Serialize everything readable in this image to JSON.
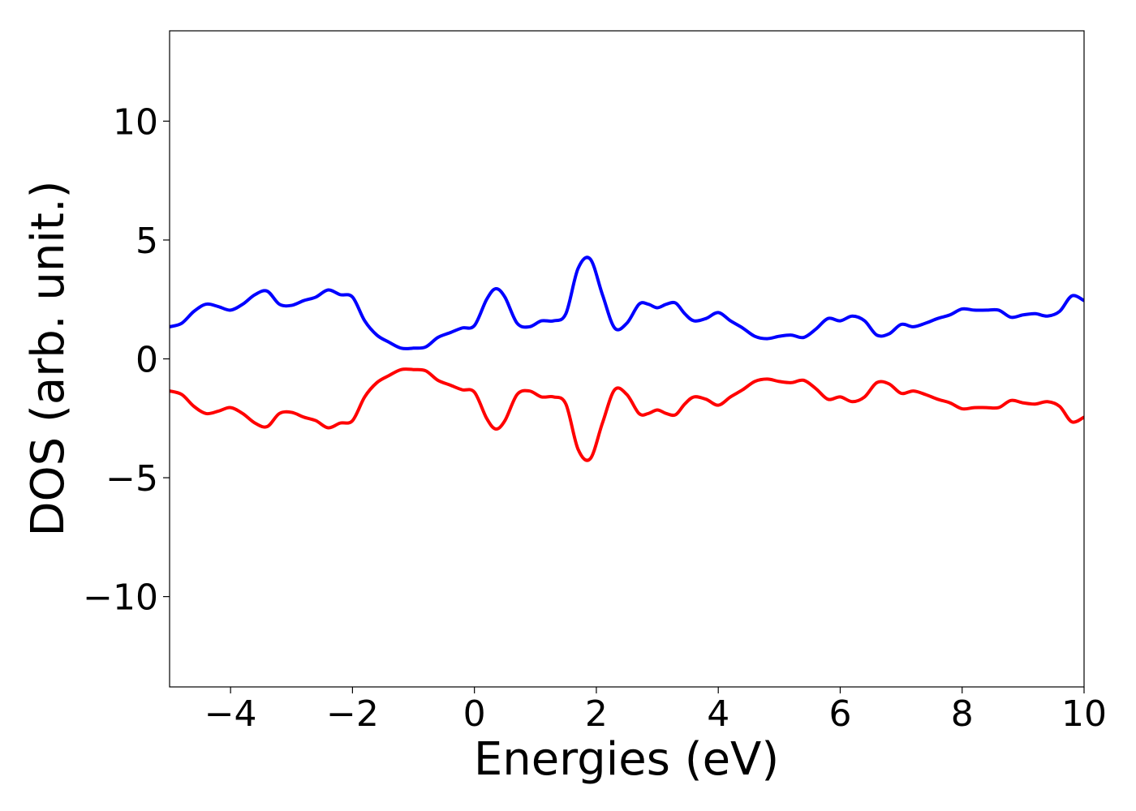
{
  "chart_data": {
    "type": "line",
    "title": "",
    "xlabel": "Energies (eV)",
    "ylabel": "DOS (arb. unit.)",
    "xlim": [
      -5,
      10
    ],
    "ylim": [
      -13.8,
      13.8
    ],
    "grid": false,
    "legend": "none",
    "x_ticks": [
      -4,
      -2,
      0,
      2,
      4,
      6,
      8,
      10
    ],
    "x_tick_labels": [
      "−4",
      "−2",
      "0",
      "2",
      "4",
      "6",
      "8",
      "10"
    ],
    "y_ticks": [
      -10,
      -5,
      0,
      5,
      10
    ],
    "y_tick_labels": [
      "−10",
      "−5",
      "0",
      "5",
      "10"
    ],
    "series": [
      {
        "color": "#0000ff",
        "x": [
          -5.0,
          -4.8,
          -4.6,
          -4.4,
          -4.2,
          -4.0,
          -3.8,
          -3.6,
          -3.4,
          -3.2,
          -3.0,
          -2.8,
          -2.6,
          -2.4,
          -2.2,
          -2.0,
          -1.8,
          -1.6,
          -1.4,
          -1.2,
          -1.0,
          -0.8,
          -0.6,
          -0.4,
          -0.2,
          0.0,
          0.2,
          0.35,
          0.5,
          0.7,
          0.9,
          1.1,
          1.3,
          1.5,
          1.7,
          1.9,
          2.1,
          2.3,
          2.5,
          2.7,
          2.85,
          3.0,
          3.15,
          3.3,
          3.45,
          3.6,
          3.8,
          4.0,
          4.2,
          4.4,
          4.6,
          4.8,
          5.0,
          5.2,
          5.4,
          5.6,
          5.8,
          6.0,
          6.2,
          6.4,
          6.6,
          6.8,
          7.0,
          7.2,
          7.4,
          7.6,
          7.8,
          8.0,
          8.2,
          8.4,
          8.6,
          8.8,
          9.0,
          9.2,
          9.4,
          9.6,
          9.8,
          10.0
        ],
        "values": [
          1.35,
          1.5,
          2.0,
          2.3,
          2.2,
          2.05,
          2.3,
          2.7,
          2.85,
          2.3,
          2.25,
          2.45,
          2.6,
          2.9,
          2.7,
          2.6,
          1.6,
          1.0,
          0.7,
          0.45,
          0.45,
          0.5,
          0.9,
          1.1,
          1.3,
          1.4,
          2.5,
          2.95,
          2.6,
          1.5,
          1.35,
          1.6,
          1.6,
          1.9,
          3.8,
          4.2,
          2.7,
          1.3,
          1.5,
          2.3,
          2.3,
          2.15,
          2.3,
          2.35,
          1.9,
          1.6,
          1.7,
          1.95,
          1.6,
          1.3,
          0.95,
          0.85,
          0.95,
          1.0,
          0.9,
          1.25,
          1.7,
          1.6,
          1.8,
          1.6,
          1.0,
          1.05,
          1.45,
          1.35,
          1.5,
          1.7,
          1.85,
          2.1,
          2.05,
          2.05,
          2.05,
          1.75,
          1.85,
          1.9,
          1.8,
          2.0,
          2.65,
          2.45
        ]
      },
      {
        "color": "#ff0000",
        "x": [
          -5.0,
          -4.8,
          -4.6,
          -4.4,
          -4.2,
          -4.0,
          -3.8,
          -3.6,
          -3.4,
          -3.2,
          -3.0,
          -2.8,
          -2.6,
          -2.4,
          -2.2,
          -2.0,
          -1.8,
          -1.6,
          -1.4,
          -1.2,
          -1.0,
          -0.8,
          -0.6,
          -0.4,
          -0.2,
          0.0,
          0.2,
          0.35,
          0.5,
          0.7,
          0.9,
          1.1,
          1.3,
          1.5,
          1.7,
          1.9,
          2.1,
          2.3,
          2.5,
          2.7,
          2.85,
          3.0,
          3.15,
          3.3,
          3.45,
          3.6,
          3.8,
          4.0,
          4.2,
          4.4,
          4.6,
          4.8,
          5.0,
          5.2,
          5.4,
          5.6,
          5.8,
          6.0,
          6.2,
          6.4,
          6.6,
          6.8,
          7.0,
          7.2,
          7.4,
          7.6,
          7.8,
          8.0,
          8.2,
          8.4,
          8.6,
          8.8,
          9.0,
          9.2,
          9.4,
          9.6,
          9.8,
          10.0
        ],
        "values": [
          -1.35,
          -1.5,
          -2.0,
          -2.3,
          -2.2,
          -2.05,
          -2.3,
          -2.7,
          -2.85,
          -2.3,
          -2.25,
          -2.45,
          -2.6,
          -2.9,
          -2.7,
          -2.6,
          -1.6,
          -1.0,
          -0.7,
          -0.45,
          -0.45,
          -0.5,
          -0.9,
          -1.1,
          -1.3,
          -1.4,
          -2.5,
          -2.95,
          -2.6,
          -1.5,
          -1.35,
          -1.6,
          -1.6,
          -1.9,
          -3.8,
          -4.2,
          -2.7,
          -1.3,
          -1.5,
          -2.3,
          -2.3,
          -2.15,
          -2.3,
          -2.35,
          -1.9,
          -1.6,
          -1.7,
          -1.95,
          -1.6,
          -1.3,
          -0.95,
          -0.85,
          -0.95,
          -1.0,
          -0.9,
          -1.25,
          -1.7,
          -1.6,
          -1.8,
          -1.6,
          -1.0,
          -1.05,
          -1.45,
          -1.35,
          -1.5,
          -1.7,
          -1.85,
          -2.1,
          -2.05,
          -2.05,
          -2.05,
          -1.75,
          -1.85,
          -1.9,
          -1.8,
          -2.0,
          -2.65,
          -2.45
        ]
      }
    ]
  }
}
